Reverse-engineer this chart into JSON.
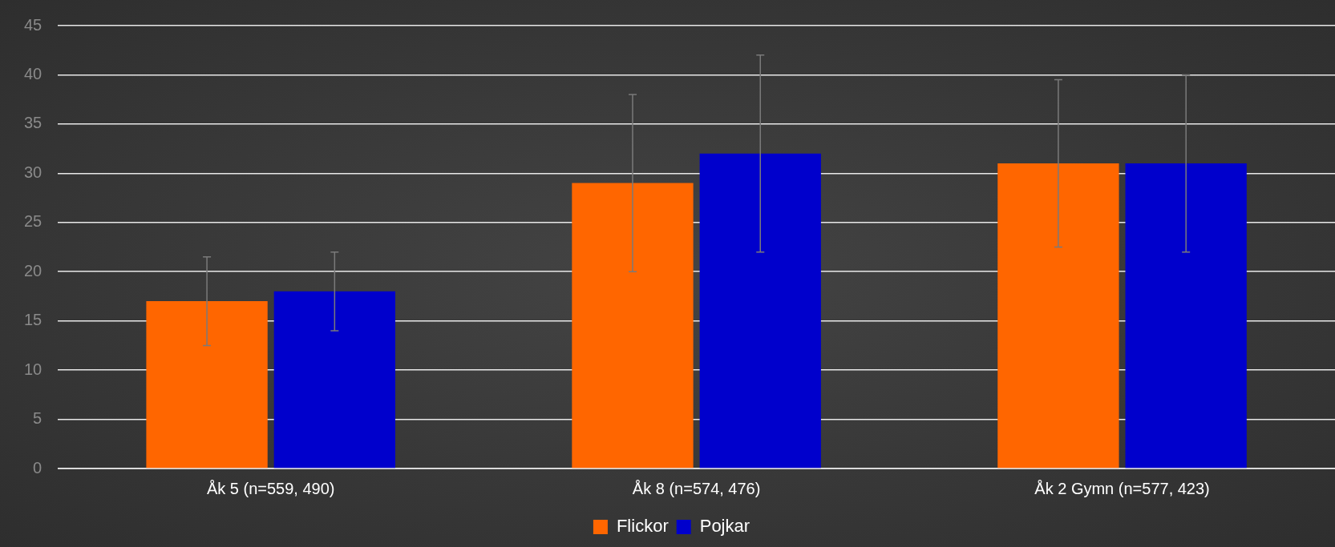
{
  "chart_data": {
    "type": "bar",
    "categories": [
      "Åk 5 (n=559, 490)",
      "Åk 8 (n=574, 476)",
      "Åk 2 Gymn (n=577, 423)"
    ],
    "series": [
      {
        "name": "Flickor",
        "color": "#ff6600",
        "values": [
          17,
          29,
          31
        ],
        "errors": [
          [
            12.5,
            21.5
          ],
          [
            20,
            38
          ],
          [
            22.5,
            39.5
          ]
        ]
      },
      {
        "name": "Pojkar",
        "color": "#0000cc",
        "values": [
          18,
          32,
          31
        ],
        "errors": [
          [
            14,
            22
          ],
          [
            22,
            42
          ],
          [
            22,
            40
          ]
        ]
      }
    ],
    "ylim": [
      0,
      45
    ],
    "yticks": [
      0,
      5,
      10,
      15,
      20,
      25,
      30,
      35,
      40,
      45
    ],
    "grid": "y",
    "legend": "bottom"
  }
}
